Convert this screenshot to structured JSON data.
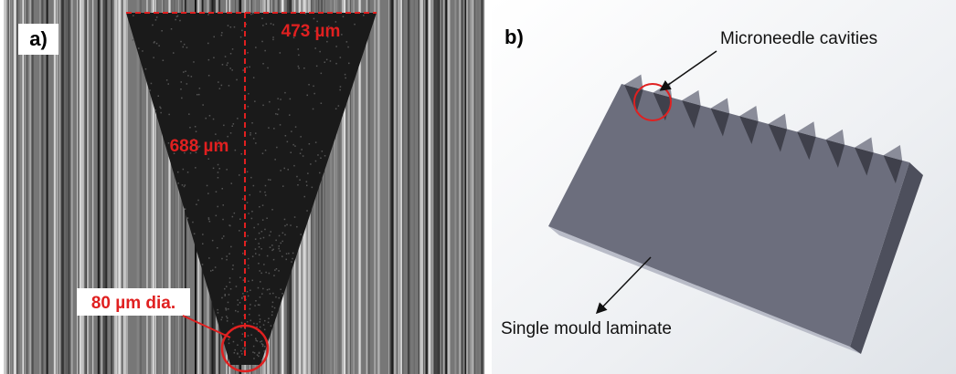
{
  "panels": [
    {
      "label": "a)",
      "annotations": [
        "473 µm",
        "688 µm",
        "80 µm dia."
      ]
    },
    {
      "label": "b)",
      "annotations": [
        "Microneedle cavities",
        "Single mould laminate"
      ]
    }
  ]
}
